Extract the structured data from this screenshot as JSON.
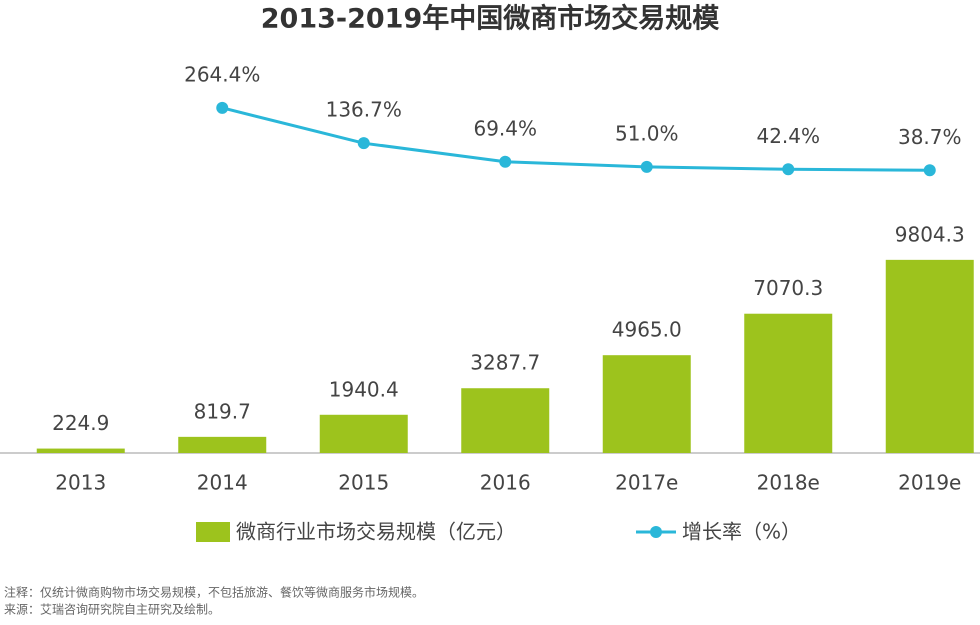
{
  "chart_data": {
    "type": "combo",
    "title": "2013-2019年中国微商市场交易规模",
    "categories": [
      "2013",
      "2014",
      "2015",
      "2016",
      "2017e",
      "2018e",
      "2019e"
    ],
    "series": [
      {
        "type": "bar",
        "name": "微商行业市场交易规模（亿元）",
        "color": "#9dc31d",
        "values": [
          224.9,
          819.7,
          1940.4,
          3287.7,
          4965.0,
          7070.3,
          9804.3
        ],
        "value_labels": [
          "224.9",
          "819.7",
          "1940.4",
          "3287.7",
          "4965.0",
          "7070.3",
          "9804.3"
        ]
      },
      {
        "type": "line",
        "axis": "y2",
        "name": "增长率（%）",
        "color": "#2ab7d9",
        "values": [
          null,
          264.4,
          136.7,
          69.4,
          51.0,
          42.4,
          38.7
        ],
        "value_labels": [
          null,
          "264.4%",
          "136.7%",
          "69.4%",
          "51.0%",
          "42.4%",
          "38.7%"
        ]
      }
    ],
    "ylim": [
      0,
      10000
    ],
    "y2lim": [
      0,
      300
    ],
    "legend": "bottom",
    "footnotes": [
      "注释：仅统计微商购物市场交易规模，不包括旅游、餐饮等微商服务市场规模。",
      "来源：艾瑞咨询研究院自主研究及绘制。"
    ]
  }
}
